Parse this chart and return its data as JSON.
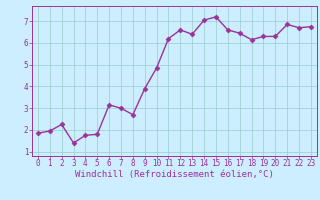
{
  "x": [
    0,
    1,
    2,
    3,
    4,
    5,
    6,
    7,
    8,
    9,
    10,
    11,
    12,
    13,
    14,
    15,
    16,
    17,
    18,
    19,
    20,
    21,
    22,
    23
  ],
  "y": [
    1.85,
    1.95,
    2.25,
    1.4,
    1.75,
    1.8,
    3.15,
    3.0,
    2.7,
    3.9,
    4.85,
    6.2,
    6.6,
    6.4,
    7.05,
    7.2,
    6.6,
    6.45,
    6.15,
    6.3,
    6.3,
    6.85,
    6.7,
    6.75
  ],
  "line_color": "#993399",
  "marker": "D",
  "marker_size": 2.5,
  "bg_color": "#cceeff",
  "grid_color": "#99cccc",
  "xlabel": "Windchill (Refroidissement éolien,°C)",
  "xlabel_color": "#993399",
  "tick_color": "#993399",
  "axis_color": "#993399",
  "xlim": [
    -0.5,
    23.5
  ],
  "ylim": [
    0.8,
    7.7
  ],
  "yticks": [
    1,
    2,
    3,
    4,
    5,
    6,
    7
  ],
  "xticks": [
    0,
    1,
    2,
    3,
    4,
    5,
    6,
    7,
    8,
    9,
    10,
    11,
    12,
    13,
    14,
    15,
    16,
    17,
    18,
    19,
    20,
    21,
    22,
    23
  ],
  "tick_fontsize": 5.5,
  "xlabel_fontsize": 6.5,
  "linewidth": 1.0
}
